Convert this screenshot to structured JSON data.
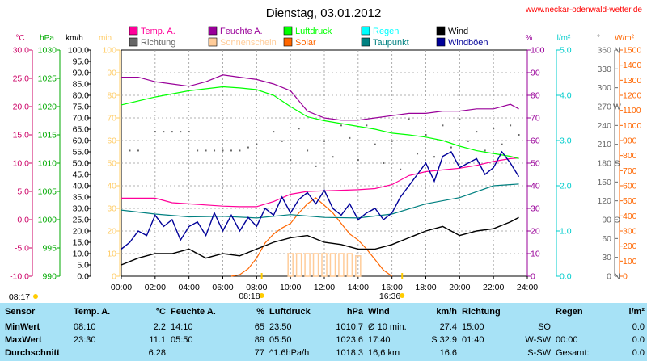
{
  "website": "www.neckar-odenwald-wetter.de",
  "chart_data": {
    "type": "line",
    "title": "Dienstag, 03.01.2012",
    "x_ticks": [
      "00:00",
      "02:00",
      "04:00",
      "06:00",
      "08:00",
      "10:00",
      "12:00",
      "14:00",
      "16:00",
      "18:00",
      "20:00",
      "22:00",
      "24:00"
    ],
    "x_range_hours": [
      0,
      24
    ],
    "grid": true,
    "legend_position": "top",
    "axes": {
      "temp": {
        "unit": "°C",
        "range": [
          -10,
          30
        ],
        "ticks": [
          "30.0",
          "25.0",
          "20.0",
          "15.0",
          "10.0",
          "5.0",
          "0.0",
          "-5.0",
          "-10.0"
        ],
        "color": "#cc0066"
      },
      "pressure": {
        "unit": "hPa",
        "range": [
          990,
          1030
        ],
        "ticks": [
          "1030",
          "1025",
          "1020",
          "1015",
          "1010",
          "1005",
          "1000",
          "995",
          "990"
        ],
        "color": "#00aa00"
      },
      "wind": {
        "unit": "km/h",
        "range": [
          0,
          100
        ],
        "ticks": [
          "100.0",
          "95.0",
          "90.0",
          "85.0",
          "80.0",
          "75.0",
          "70.0",
          "65.0",
          "60.0",
          "55.0",
          "50.0",
          "45.0",
          "40.0",
          "35.0",
          "30.0",
          "25.0",
          "20.0",
          "15.0",
          "10.0",
          "5.0",
          "0.0"
        ],
        "color": "#000000"
      },
      "sun": {
        "unit": "min",
        "range": [
          0,
          100
        ],
        "ticks": [
          "100",
          "90",
          "80",
          "70",
          "60",
          "50",
          "40",
          "30",
          "20",
          "10",
          "0"
        ],
        "color": "#ffcc66"
      },
      "humidity": {
        "unit": "%",
        "range": [
          0,
          100
        ],
        "ticks": [
          "100",
          "90",
          "80",
          "70",
          "60",
          "50",
          "40",
          "30",
          "20",
          "10",
          "0"
        ],
        "color": "#990099"
      },
      "rain": {
        "unit": "l/m²",
        "range": [
          0,
          5
        ],
        "ticks": [
          "5.0",
          "4.0",
          "3.0",
          "2.0",
          "1.0",
          "0.0"
        ],
        "color": "#00cccc"
      },
      "direction": {
        "unit": "°",
        "range": [
          0,
          360
        ],
        "ticks": [
          "360",
          "330",
          "300",
          "270",
          "240",
          "210",
          "180",
          "150",
          "120",
          "90",
          "60",
          "30",
          "0"
        ],
        "compass": {
          "360": "N",
          "270": "W",
          "180": "S",
          "90": "O",
          "0": "N"
        },
        "color": "#666666"
      },
      "solar": {
        "unit": "W/m²",
        "range": [
          0,
          1500
        ],
        "ticks": [
          "1500",
          "1400",
          "1300",
          "1200",
          "1100",
          "1000",
          "900",
          "800",
          "700",
          "600",
          "500",
          "400",
          "300",
          "200",
          "100",
          "0"
        ],
        "color": "#ff6600"
      }
    },
    "legend": [
      {
        "label": "Temp. A.",
        "color": "#ff0099"
      },
      {
        "label": "Feuchte A.",
        "color": "#990099"
      },
      {
        "label": "Luftdruck",
        "color": "#00ff00"
      },
      {
        "label": "Regen",
        "color": "#00ffff"
      },
      {
        "label": "Wind",
        "color": "#000000"
      },
      {
        "label": "Richtung",
        "color": "#666666"
      },
      {
        "label": "Sonnenschein",
        "color": "#ffcc99"
      },
      {
        "label": "Solar",
        "color": "#ff6600"
      },
      {
        "label": "Taupunkt",
        "color": "#008080"
      },
      {
        "label": "Windböen",
        "color": "#000099"
      }
    ],
    "series": [
      {
        "name": "Temp. A.",
        "axis": "temp",
        "color": "#ff0099",
        "x": [
          0,
          2,
          3,
          4,
          5,
          6,
          7,
          8,
          9,
          10,
          11,
          12,
          13,
          14,
          15,
          16,
          17,
          18,
          19,
          20,
          21,
          22,
          23,
          23.5
        ],
        "y": [
          3.8,
          3.8,
          3.0,
          2.8,
          2.6,
          2.4,
          2.3,
          2.3,
          3.2,
          4.5,
          5.0,
          5.1,
          5.2,
          5.3,
          5.5,
          6.2,
          7.8,
          8.5,
          8.8,
          9.1,
          9.6,
          10.3,
          10.8,
          10.9
        ]
      },
      {
        "name": "Feuchte A.",
        "axis": "humidity",
        "color": "#990099",
        "x": [
          0,
          1,
          2,
          3,
          4,
          5,
          6,
          7,
          8,
          9,
          10,
          11,
          12,
          13,
          14,
          15,
          16,
          17,
          18,
          19,
          20,
          21,
          22,
          23,
          23.5
        ],
        "y": [
          88,
          88,
          86,
          85,
          84,
          86,
          89,
          88,
          87,
          85,
          82,
          73,
          70,
          69,
          69,
          70,
          71,
          72,
          72,
          73,
          73,
          74,
          74,
          76,
          74
        ]
      },
      {
        "name": "Luftdruck",
        "axis": "pressure",
        "color": "#00ff00",
        "x": [
          0,
          2,
          4,
          6,
          7,
          8,
          9,
          10,
          11,
          12,
          13,
          14,
          15,
          16,
          17,
          18,
          19,
          20,
          21,
          22,
          23,
          23.5
        ],
        "y": [
          1020.3,
          1021.7,
          1022.8,
          1023.5,
          1023.3,
          1023.0,
          1022.0,
          1020.0,
          1018.2,
          1017.5,
          1017.0,
          1016.5,
          1016.0,
          1015.3,
          1015.0,
          1014.6,
          1014.0,
          1013.0,
          1012.2,
          1011.7,
          1011.2,
          1010.8
        ]
      },
      {
        "name": "Taupunkt",
        "axis": "temp",
        "color": "#008080",
        "x": [
          0,
          2,
          4,
          6,
          8,
          10,
          12,
          14,
          16,
          18,
          20,
          22,
          23.5
        ],
        "y": [
          1.7,
          1.0,
          0.5,
          0.6,
          0.3,
          0.9,
          0.4,
          0.3,
          1.0,
          2.8,
          3.9,
          6.0,
          6.3
        ]
      },
      {
        "name": "Wind",
        "axis": "wind",
        "color": "#000000",
        "x": [
          0,
          1,
          2,
          3,
          4,
          5,
          6,
          7,
          8,
          9,
          10,
          11,
          12,
          13,
          14,
          15,
          16,
          17,
          18,
          19,
          20,
          21,
          22,
          23,
          23.5
        ],
        "y": [
          5,
          8,
          10,
          10,
          12,
          8,
          10,
          9,
          12,
          15,
          17,
          18,
          15,
          14,
          12,
          12,
          14,
          17,
          20,
          22,
          18,
          20,
          21,
          24,
          26
        ]
      },
      {
        "name": "Windböen",
        "axis": "wind",
        "color": "#000099",
        "x": [
          0,
          0.5,
          1,
          1.5,
          2,
          2.5,
          3,
          3.5,
          4,
          4.5,
          5,
          5.5,
          6,
          6.5,
          7,
          7.5,
          8,
          8.5,
          9,
          9.5,
          10,
          10.5,
          11,
          11.5,
          12,
          12.5,
          13,
          13.5,
          14,
          14.5,
          15,
          15.5,
          16,
          16.5,
          17,
          17.5,
          18,
          18.5,
          19,
          19.5,
          20,
          20.5,
          21,
          21.5,
          22,
          22.5,
          23,
          23.5
        ],
        "y": [
          12,
          15,
          20,
          18,
          27,
          22,
          25,
          16,
          22,
          24,
          18,
          28,
          20,
          27,
          20,
          26,
          22,
          30,
          27,
          35,
          28,
          34,
          37,
          32,
          38,
          30,
          27,
          32,
          25,
          28,
          30,
          25,
          28,
          35,
          40,
          45,
          50,
          42,
          53,
          55,
          48,
          50,
          52,
          45,
          48,
          55,
          50,
          44
        ]
      },
      {
        "name": "Solar",
        "axis": "solar",
        "color": "#ff6600",
        "x": [
          6.5,
          7,
          7.5,
          8,
          8.5,
          9,
          9.5,
          10,
          10.5,
          11,
          11.5,
          12,
          12.5,
          13,
          13.5,
          14,
          14.5,
          15,
          15.5,
          16
        ],
        "y": [
          0,
          10,
          50,
          120,
          220,
          280,
          320,
          350,
          420,
          480,
          520,
          470,
          420,
          350,
          280,
          240,
          180,
          110,
          40,
          0
        ]
      },
      {
        "name": "Sonnenschein",
        "axis": "sun",
        "color": "#ffcc99",
        "x": [
          10,
          10.5,
          11,
          11.5,
          12,
          12.5,
          13,
          13.5,
          14
        ],
        "y": [
          10,
          10,
          10,
          10,
          10,
          10,
          10,
          10,
          9
        ]
      },
      {
        "name": "Richtung",
        "axis": "direction",
        "color": "#666666",
        "type": "scatter",
        "x": [
          0.5,
          1,
          2,
          2.5,
          3,
          3.5,
          4,
          4.5,
          5,
          5.5,
          6,
          6.5,
          7,
          7.5,
          8,
          9,
          9.5,
          10,
          10.5,
          11,
          11.5,
          12,
          12.5,
          13,
          13.5,
          14,
          14.5,
          15,
          15.5,
          16,
          16.5,
          17,
          17.5,
          18,
          18.5,
          19,
          19.5,
          20,
          20.5,
          21,
          21.5,
          22,
          22.5,
          23,
          23.5
        ],
        "y": [
          200,
          200,
          230,
          230,
          230,
          230,
          230,
          200,
          200,
          200,
          200,
          200,
          200,
          205,
          210,
          230,
          215,
          185,
          235,
          200,
          175,
          215,
          190,
          240,
          220,
          185,
          240,
          210,
          180,
          215,
          170,
          250,
          195,
          225,
          190,
          240,
          205,
          250,
          215,
          230,
          200,
          235,
          210,
          240,
          225
        ]
      }
    ],
    "sun_times": {
      "sunrise": "08:17",
      "sunset": "16:36",
      "mark1": "08:18",
      "mark2": "16:36"
    }
  },
  "stats": {
    "header": {
      "sensor": "Sensor",
      "temp": "Temp. A.",
      "temp_unit": "°C",
      "hum": "Feuchte A.",
      "hum_unit": "%",
      "press": "Luftdruck",
      "press_unit": "hPa",
      "wind": "Wind",
      "wind_unit": "km/h",
      "dir": "Richtung",
      "rain": "Regen",
      "rain_unit": "l/m²"
    },
    "rows": [
      {
        "label": "MinWert",
        "t_time": "08:10",
        "t_val": "2.2",
        "h_time": "14:10",
        "h_val": "65",
        "p_time": "23:50",
        "p_val": "1010.7",
        "w_time": "Ø 10 min.",
        "w_val": "27.4",
        "d_time": "15:00",
        "d_val": "SO",
        "r_time": "",
        "r_val": "0.0"
      },
      {
        "label": "MaxWert",
        "t_time": "23:30",
        "t_val": "11.1",
        "h_time": "05:50",
        "h_val": "89",
        "p_time": "05:50",
        "p_val": "1023.6",
        "w_time": "17:40",
        "w_val": "S 32.9",
        "d_time": "01:40",
        "d_val": "W-SW",
        "r_time": "00:00",
        "r_val": "0.0"
      },
      {
        "label": "Durchschnitt",
        "t_time": "",
        "t_val": "6.28",
        "h_time": "",
        "h_val": "77",
        "p_time": "^1.6hPa/h",
        "p_val": "1018.3",
        "w_time": "16,6 km",
        "w_val": "16.6",
        "d_time": "",
        "d_val": "S-SW",
        "r_time": "Gesamt:",
        "r_val": "0.0"
      }
    ]
  }
}
